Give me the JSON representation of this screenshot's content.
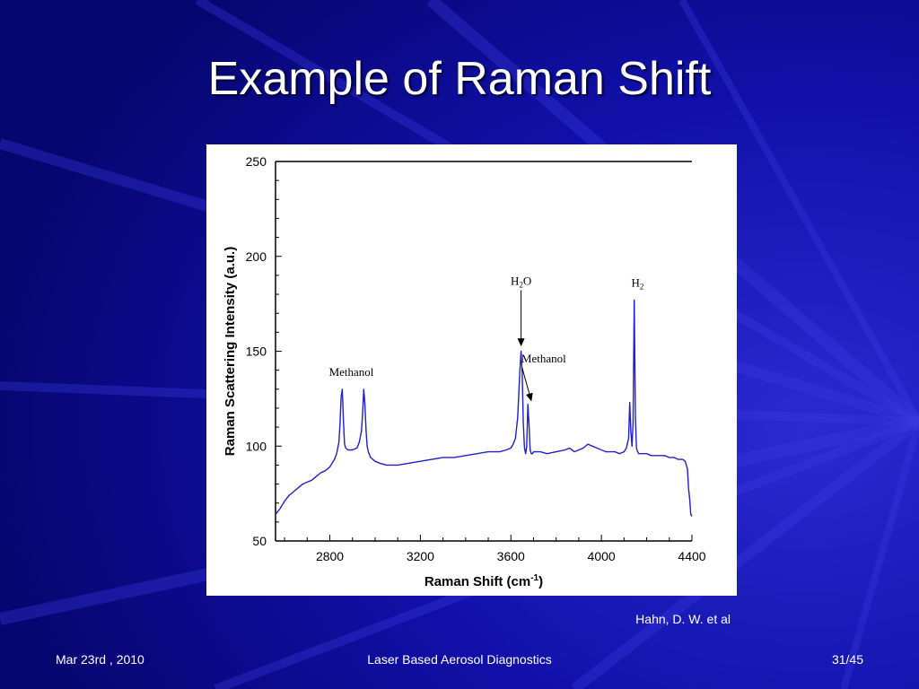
{
  "slide": {
    "title": "Example of Raman Shift",
    "citation": "Hahn, D. W. et al"
  },
  "footer": {
    "date": "Mar 23rd , 2010",
    "center": "Laser Based Aerosol Diagnostics",
    "page": "31/45"
  },
  "colors": {
    "background": "#0a0a8c",
    "title_text": "#ffffff",
    "spectrum_line": "#1f1fcf",
    "plot_axes": "#000000"
  },
  "chart_data": {
    "type": "line",
    "xlabel": "Raman Shift (cm",
    "xlabel_sup": "-1",
    "xlabel_suffix": ")",
    "ylabel": "Raman Scattering Intensity (a.u.)",
    "xlim": [
      2560,
      4400
    ],
    "ylim": [
      50,
      250
    ],
    "xticks": [
      2800,
      3200,
      3600,
      4000,
      4400
    ],
    "yticks": [
      50,
      100,
      150,
      200,
      250
    ],
    "grid": false,
    "series": [
      {
        "x": [
          2560,
          2580,
          2600,
          2620,
          2640,
          2660,
          2680,
          2700,
          2720,
          2740,
          2760,
          2780,
          2800,
          2820,
          2830,
          2840,
          2845,
          2850,
          2855,
          2860,
          2865,
          2870,
          2880,
          2900,
          2920,
          2930,
          2940,
          2945,
          2950,
          2955,
          2960,
          2965,
          2970,
          2980,
          3000,
          3020,
          3050,
          3100,
          3150,
          3200,
          3250,
          3300,
          3350,
          3400,
          3450,
          3500,
          3550,
          3580,
          3600,
          3610,
          3620,
          3630,
          3640,
          3645,
          3650,
          3655,
          3660,
          3665,
          3670,
          3675,
          3680,
          3685,
          3690,
          3695,
          3700,
          3710,
          3730,
          3760,
          3800,
          3840,
          3860,
          3880,
          3900,
          3920,
          3940,
          3960,
          3980,
          4000,
          4020,
          4040,
          4060,
          4080,
          4100,
          4110,
          4120,
          4125,
          4130,
          4135,
          4140,
          4145,
          4150,
          4155,
          4160,
          4165,
          4170,
          4180,
          4200,
          4220,
          4240,
          4260,
          4280,
          4300,
          4320,
          4340,
          4360,
          4370,
          4380,
          4385,
          4390,
          4395,
          4400
        ],
        "y": [
          64,
          67,
          71,
          74,
          76,
          78,
          80,
          81,
          82,
          84,
          86,
          87,
          89,
          93,
          96,
          102,
          112,
          126,
          130,
          113,
          101,
          99,
          98,
          98,
          99,
          102,
          108,
          118,
          130,
          122,
          108,
          100,
          97,
          94,
          92,
          91,
          90,
          90,
          91,
          92,
          93,
          94,
          94,
          95,
          96,
          97,
          97,
          98,
          99,
          101,
          104,
          115,
          140,
          150,
          138,
          112,
          99,
          96,
          100,
          122,
          112,
          98,
          96,
          96,
          97,
          97,
          97,
          96,
          97,
          98,
          99,
          97,
          98,
          99,
          101,
          100,
          99,
          98,
          97,
          97,
          97,
          96,
          97,
          99,
          104,
          123,
          108,
          100,
          112,
          177,
          115,
          99,
          97,
          96,
          96,
          96,
          96,
          95,
          95,
          95,
          95,
          94,
          94,
          93,
          93,
          92,
          88,
          78,
          72,
          64,
          63
        ]
      }
    ],
    "annotations": [
      {
        "text": "Methanol",
        "x": 2895,
        "y": 137
      },
      {
        "text": "H",
        "sub": "2",
        "suffix": "O",
        "x": 3645,
        "y": 185,
        "arrow_to": [
          3645,
          153
        ]
      },
      {
        "text": "Methanol",
        "x": 3745,
        "y": 144,
        "arrow_to": [
          3690,
          124
        ]
      },
      {
        "text": "H",
        "sub": "2",
        "suffix": "",
        "x": 4160,
        "y": 184
      }
    ]
  }
}
